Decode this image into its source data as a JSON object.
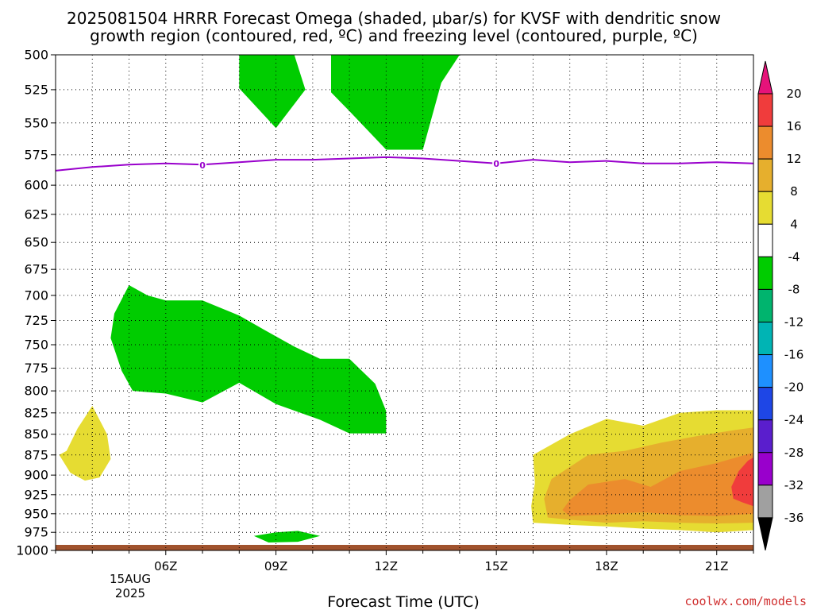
{
  "title": {
    "line1": "2025081504 HRRR Forecast Omega (shaded, µbar/s) for KVSF with dendritic snow",
    "line2": "growth region (contoured, red, ºC) and freezing level (contoured, purple, ºC)"
  },
  "credit": "coolwx.com/models",
  "colors": {
    "green": "#00cc00",
    "yellow": "#e6dc32",
    "gold": "#e6af2d",
    "orange": "#ec8c2d",
    "red": "#f03c3c",
    "freezing": "#9900cc",
    "ground": "#a0522d"
  },
  "chart_data": {
    "type": "heatmap",
    "xlabel": "Forecast Time (UTC)",
    "x_date_label": [
      "15AUG",
      "2025"
    ],
    "x_ticks": [
      {
        "hour": 6,
        "label": "06Z"
      },
      {
        "hour": 9,
        "label": "09Z"
      },
      {
        "hour": 12,
        "label": "12Z"
      },
      {
        "hour": 15,
        "label": "15Z"
      },
      {
        "hour": 18,
        "label": "18Z"
      },
      {
        "hour": 21,
        "label": "21Z"
      }
    ],
    "xlim": [
      3.0,
      22.0
    ],
    "y_ticks": [
      500,
      525,
      550,
      575,
      600,
      625,
      650,
      675,
      700,
      725,
      750,
      775,
      800,
      825,
      850,
      875,
      900,
      925,
      950,
      975,
      1000
    ],
    "ylim": [
      500,
      1000
    ],
    "y_scale": "log pressure (hPa), inverted",
    "grid": true,
    "colorbar": {
      "labels": [
        "20",
        "16",
        "12",
        "8",
        "4",
        "-4",
        "-8",
        "-12",
        "-16",
        "-20",
        "-24",
        "-28",
        "-32",
        "-36"
      ],
      "bins": [
        "#e6137a",
        "#f03c3c",
        "#ec8c2d",
        "#e6af2d",
        "#e6dc32",
        "#ffffff",
        "#00cc00",
        "#00b46e",
        "#00b4b4",
        "#1e90ff",
        "#1e46e6",
        "#5a1ecd",
        "#9900cc",
        "#a0a0a0",
        "#000000"
      ]
    },
    "freezing_level": {
      "label": "0",
      "label_hours": [
        7.0,
        15.0
      ],
      "points": [
        [
          3.0,
          588
        ],
        [
          4.0,
          585
        ],
        [
          5.0,
          583
        ],
        [
          6.0,
          582
        ],
        [
          7.0,
          583
        ],
        [
          8.0,
          581
        ],
        [
          9.0,
          579
        ],
        [
          10.0,
          579
        ],
        [
          11.0,
          578
        ],
        [
          12.0,
          577
        ],
        [
          13.0,
          578
        ],
        [
          14.0,
          580
        ],
        [
          15.0,
          582
        ],
        [
          16.0,
          579
        ],
        [
          17.0,
          581
        ],
        [
          18.0,
          580
        ],
        [
          19.0,
          582
        ],
        [
          20.0,
          582
        ],
        [
          21.0,
          581
        ],
        [
          22.0,
          582
        ]
      ]
    },
    "regions": [
      {
        "name": "green",
        "level": "-4",
        "points": [
          [
            8.0,
            500
          ],
          [
            9.5,
            500
          ],
          [
            9.8,
            525
          ],
          [
            9.0,
            554
          ],
          [
            8.0,
            524
          ]
        ]
      },
      {
        "name": "green",
        "level": "-4",
        "points": [
          [
            10.5,
            500
          ],
          [
            14.0,
            500
          ],
          [
            13.5,
            520
          ],
          [
            13.0,
            571
          ],
          [
            12.0,
            571
          ],
          [
            11.0,
            541
          ],
          [
            10.5,
            527
          ]
        ]
      },
      {
        "name": "green",
        "level": "-4",
        "points": [
          [
            5.0,
            690
          ],
          [
            5.5,
            700
          ],
          [
            6.0,
            705
          ],
          [
            7.0,
            705
          ],
          [
            8.0,
            720
          ],
          [
            8.7,
            735
          ],
          [
            9.5,
            752
          ],
          [
            10.2,
            765
          ],
          [
            11.0,
            765
          ],
          [
            11.7,
            792
          ],
          [
            12.0,
            823
          ],
          [
            12.0,
            849
          ],
          [
            11.0,
            849
          ],
          [
            10.2,
            833
          ],
          [
            9.0,
            815
          ],
          [
            8.0,
            791
          ],
          [
            7.0,
            813
          ],
          [
            6.0,
            803
          ],
          [
            5.1,
            800
          ],
          [
            4.8,
            778
          ],
          [
            4.5,
            743
          ],
          [
            4.6,
            718
          ]
        ]
      },
      {
        "name": "green",
        "level": "-4",
        "points": [
          [
            8.4,
            980
          ],
          [
            9.0,
            975
          ],
          [
            9.6,
            973
          ],
          [
            10.2,
            980
          ],
          [
            9.6,
            988
          ],
          [
            8.8,
            989
          ]
        ]
      },
      {
        "name": "yellow",
        "level": "4",
        "points": [
          [
            3.3,
            870
          ],
          [
            3.6,
            843
          ],
          [
            4.0,
            817
          ],
          [
            4.4,
            850
          ],
          [
            4.5,
            880
          ],
          [
            4.2,
            903
          ],
          [
            3.8,
            907
          ],
          [
            3.4,
            897
          ],
          [
            3.1,
            875
          ]
        ]
      },
      {
        "name": "yellow",
        "level": "4",
        "points": [
          [
            16.0,
            875
          ],
          [
            17.0,
            850
          ],
          [
            18.0,
            832
          ],
          [
            19.0,
            840
          ],
          [
            20.0,
            825
          ],
          [
            21.0,
            822
          ],
          [
            22.0,
            822
          ],
          [
            22.0,
            972
          ],
          [
            21.0,
            975
          ],
          [
            20.0,
            972
          ],
          [
            19.0,
            970
          ],
          [
            18.0,
            967
          ],
          [
            17.0,
            965
          ],
          [
            16.0,
            962
          ],
          [
            15.95,
            940
          ],
          [
            16.05,
            910
          ]
        ]
      },
      {
        "name": "gold",
        "level": "8",
        "points": [
          [
            16.5,
            905
          ],
          [
            17.5,
            875
          ],
          [
            18.5,
            870
          ],
          [
            19.5,
            860
          ],
          [
            20.5,
            852
          ],
          [
            21.5,
            845
          ],
          [
            22.0,
            842
          ],
          [
            22.0,
            962
          ],
          [
            21.0,
            963
          ],
          [
            20.0,
            962
          ],
          [
            19.0,
            960
          ],
          [
            18.0,
            962
          ],
          [
            17.0,
            958
          ],
          [
            16.4,
            955
          ],
          [
            16.3,
            930
          ]
        ]
      },
      {
        "name": "orange",
        "level": "12",
        "points": [
          [
            17.0,
            932
          ],
          [
            17.5,
            912
          ],
          [
            18.5,
            905
          ],
          [
            19.2,
            915
          ],
          [
            20.0,
            895
          ],
          [
            21.0,
            885
          ],
          [
            22.0,
            872
          ],
          [
            22.0,
            950
          ],
          [
            21.0,
            953
          ],
          [
            20.0,
            952
          ],
          [
            19.0,
            948
          ],
          [
            18.0,
            951
          ],
          [
            17.0,
            953
          ],
          [
            16.8,
            945
          ]
        ]
      },
      {
        "name": "red",
        "level": "16",
        "points": [
          [
            21.4,
            915
          ],
          [
            21.6,
            895
          ],
          [
            21.85,
            882
          ],
          [
            22.0,
            878
          ],
          [
            22.0,
            940
          ],
          [
            21.7,
            935
          ],
          [
            21.45,
            930
          ]
        ]
      }
    ]
  }
}
